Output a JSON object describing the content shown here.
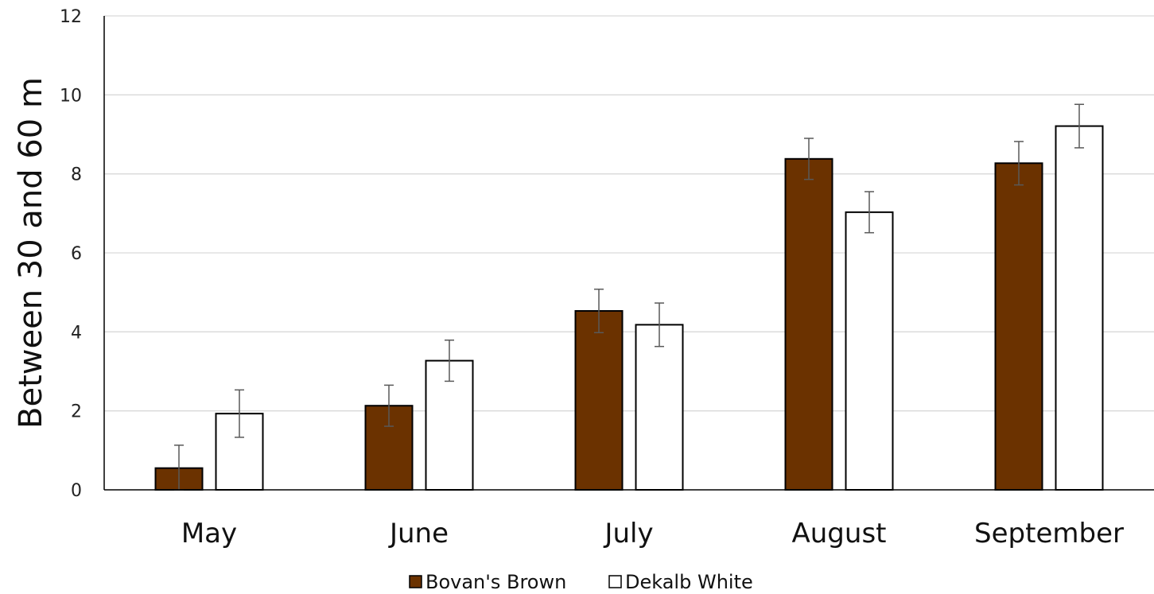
{
  "chart_data": {
    "type": "bar",
    "title": "",
    "xlabel": "",
    "ylabel": "Between 30 and 60 m",
    "ylim": [
      0,
      12
    ],
    "yticks": [
      "0",
      "2",
      "4",
      "6",
      "8",
      "10",
      "12"
    ],
    "grid": true,
    "legend_position": "bottom",
    "categories": [
      "May",
      "June",
      "July",
      "August",
      "September"
    ],
    "series": [
      {
        "name": "Bovan's Brown",
        "color": "#6b3200",
        "values": [
          0.55,
          2.13,
          4.53,
          8.38,
          8.27
        ],
        "errors": [
          0.58,
          0.52,
          0.55,
          0.52,
          0.55
        ]
      },
      {
        "name": "Dekalb White",
        "color": "#ffffff",
        "values": [
          1.93,
          3.27,
          4.18,
          7.03,
          9.21
        ],
        "errors": [
          0.6,
          0.52,
          0.55,
          0.52,
          0.55
        ]
      }
    ]
  }
}
